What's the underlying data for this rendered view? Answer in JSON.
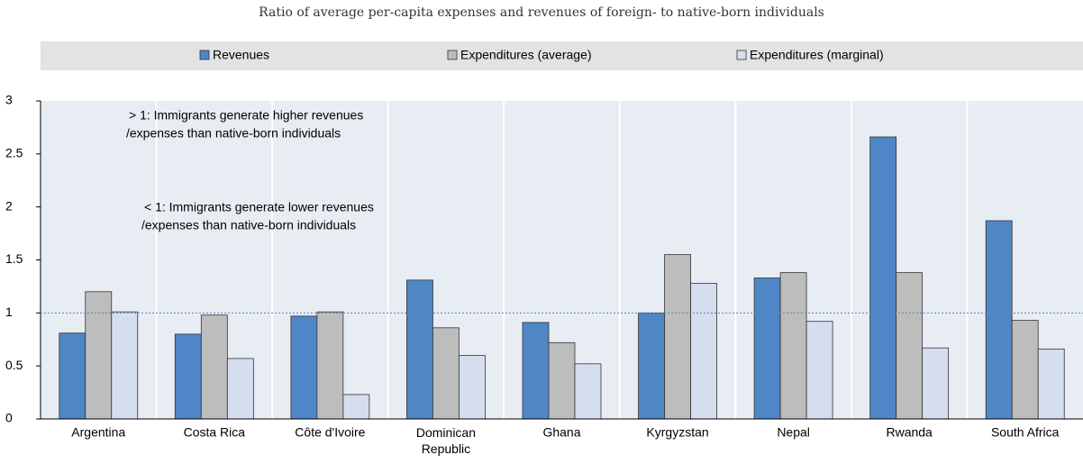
{
  "chart_data": {
    "type": "bar",
    "subtitle": "Ratio of average per-capita expenses and revenues of foreign- to native-born individuals",
    "categories": [
      "Argentina",
      "Costa Rica",
      "Côte d'Ivoire",
      "Dominican Republic",
      "Ghana",
      "Kyrgyzstan",
      "Nepal",
      "Rwanda",
      "South Africa"
    ],
    "series": [
      {
        "name": "Revenues",
        "color": "#4f86c6",
        "values": [
          0.81,
          0.8,
          0.97,
          1.31,
          0.91,
          1.0,
          1.33,
          2.66,
          1.87
        ]
      },
      {
        "name": "Expenditures (average)",
        "color": "#bdbdbd",
        "values": [
          1.2,
          0.98,
          1.01,
          0.86,
          0.72,
          1.55,
          1.38,
          1.38,
          0.93
        ]
      },
      {
        "name": "Expenditures (marginal)",
        "color": "#d5deef",
        "values": [
          1.01,
          0.57,
          0.23,
          0.6,
          0.52,
          1.28,
          0.92,
          0.67,
          0.66
        ]
      }
    ],
    "ylim": [
      0,
      3
    ],
    "yticks": [
      0,
      0.5,
      1,
      1.5,
      2,
      2.5,
      3
    ],
    "reference_line": 1,
    "annotations": [
      [
        "> 1: Immigrants generate higher revenues",
        "/expenses than native-born individuals"
      ],
      [
        "< 1: Immigrants generate lower revenues",
        "/expenses than native-born individuals"
      ]
    ]
  }
}
